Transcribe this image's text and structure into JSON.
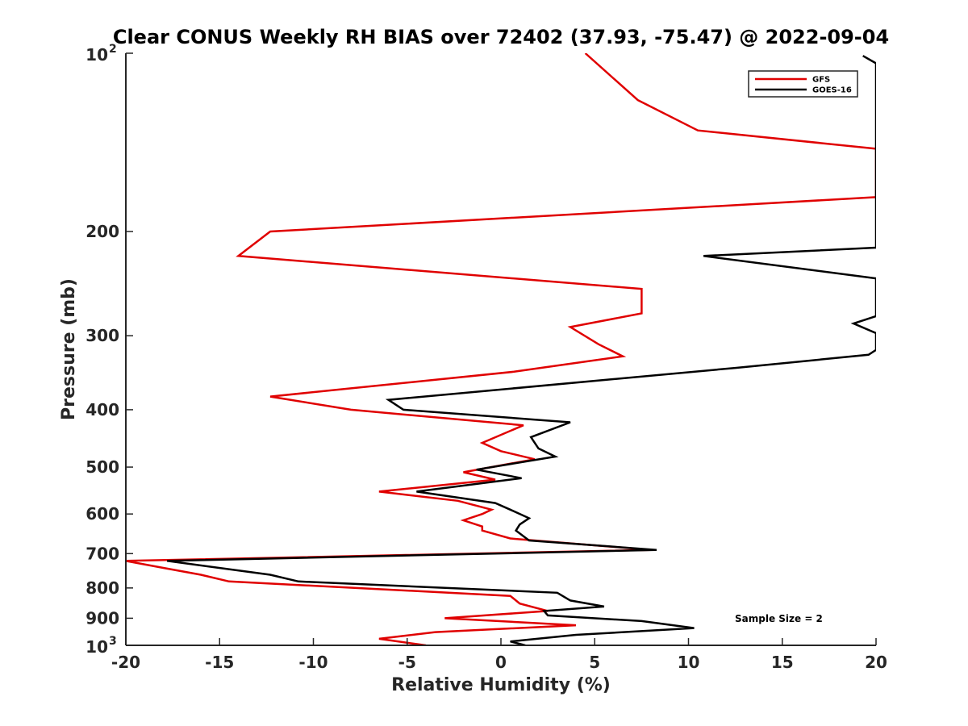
{
  "chart_data": {
    "type": "line",
    "title": "Clear CONUS Weekly RH BIAS over 72402 (37.93, -75.47) @ 2022-09-04",
    "xlabel": "Relative Humidity (%)",
    "ylabel": "Pressure (mb)",
    "xlim": [
      -20,
      20
    ],
    "ylim": [
      100,
      1000
    ],
    "yscale": "log",
    "yreversed": true,
    "x_ticks": [
      -20,
      -15,
      -10,
      -5,
      0,
      5,
      10,
      15,
      20
    ],
    "x_tick_labels": [
      "-20",
      "-15",
      "-10",
      "-5",
      "0",
      "5",
      "10",
      "15",
      "20"
    ],
    "y_ticks": [
      {
        "value": 100,
        "base": "10",
        "exp": "2"
      },
      {
        "value": 200,
        "label": "200"
      },
      {
        "value": 300,
        "label": "300"
      },
      {
        "value": 400,
        "label": "400"
      },
      {
        "value": 500,
        "label": "500"
      },
      {
        "value": 600,
        "label": "600"
      },
      {
        "value": 700,
        "label": "700"
      },
      {
        "value": 800,
        "label": "800"
      },
      {
        "value": 900,
        "label": "900"
      },
      {
        "value": 1000,
        "base": "10",
        "exp": "3"
      }
    ],
    "legend_position": "top-right",
    "annotation": "Sample Size = 2",
    "series": [
      {
        "name": "GFS",
        "color": "#e00000",
        "points": [
          [
            -4,
            1000
          ],
          [
            -6.5,
            975
          ],
          [
            -3.5,
            950
          ],
          [
            4,
            925
          ],
          [
            -3,
            900
          ],
          [
            2.5,
            875
          ],
          [
            1,
            850
          ],
          [
            0.5,
            825
          ],
          [
            -14.5,
            780
          ],
          [
            -16,
            760
          ],
          [
            -18,
            740
          ],
          [
            -20,
            720
          ],
          [
            8,
            690
          ],
          [
            0.5,
            660
          ],
          [
            -1,
            640
          ],
          [
            -1,
            630
          ],
          [
            -2,
            615
          ],
          [
            -1,
            600
          ],
          [
            -0.5,
            590
          ],
          [
            -2.3,
            570
          ],
          [
            -6.5,
            550
          ],
          [
            -0.3,
            525
          ],
          [
            -2,
            510
          ],
          [
            1.8,
            485
          ],
          [
            0,
            470
          ],
          [
            -1,
            455
          ],
          [
            1.2,
            425
          ],
          [
            -8,
            400
          ],
          [
            -12.3,
            380
          ],
          [
            0.7,
            345
          ],
          [
            6.5,
            325
          ],
          [
            5.2,
            310
          ],
          [
            3.7,
            290
          ],
          [
            7.5,
            275
          ],
          [
            7.5,
            250
          ],
          [
            -14,
            220
          ],
          [
            -12.3,
            200
          ],
          [
            20,
            175
          ],
          [
            20,
            145
          ],
          [
            10.5,
            135
          ],
          [
            7.3,
            120
          ],
          [
            4.5,
            100
          ]
        ]
      },
      {
        "name": "GOES-16",
        "color": "#000000",
        "points": [
          [
            1.3,
            1000
          ],
          [
            0.5,
            985
          ],
          [
            4,
            960
          ],
          [
            10.3,
            935
          ],
          [
            7.5,
            910
          ],
          [
            2.5,
            890
          ],
          [
            2.3,
            875
          ],
          [
            5.5,
            860
          ],
          [
            3.7,
            840
          ],
          [
            3,
            815
          ],
          [
            -10.8,
            780
          ],
          [
            -12.3,
            760
          ],
          [
            -17.8,
            720
          ],
          [
            8.3,
            690
          ],
          [
            1.5,
            665
          ],
          [
            0.8,
            640
          ],
          [
            1,
            625
          ],
          [
            1.5,
            610
          ],
          [
            0.5,
            590
          ],
          [
            -0.3,
            575
          ],
          [
            -4.5,
            550
          ],
          [
            1.1,
            522
          ],
          [
            -1.3,
            505
          ],
          [
            2.9,
            480
          ],
          [
            2,
            465
          ],
          [
            1.6,
            445
          ],
          [
            3.7,
            420
          ],
          [
            -5.2,
            400
          ],
          [
            -6,
            385
          ],
          [
            12.5,
            340
          ],
          [
            19.6,
            323
          ],
          [
            20,
            317
          ],
          [
            20,
            297
          ],
          [
            18.8,
            286
          ],
          [
            20,
            278
          ],
          [
            20,
            240
          ],
          [
            10.8,
            220
          ],
          [
            20,
            213
          ],
          [
            20,
            104
          ],
          [
            19.3,
            101
          ]
        ]
      }
    ]
  }
}
